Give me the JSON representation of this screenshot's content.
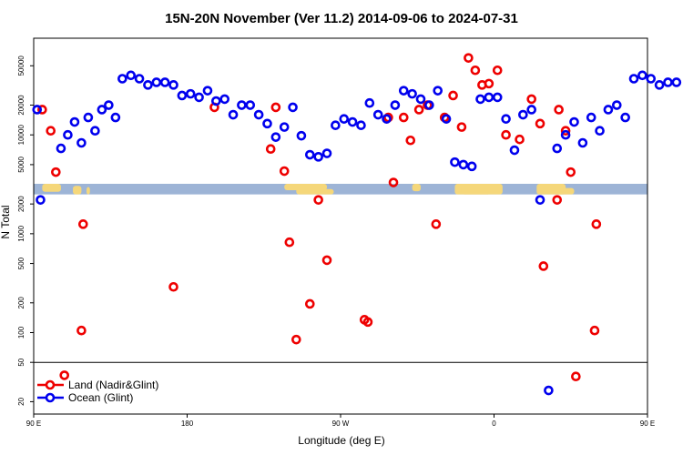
{
  "chart_data": {
    "type": "scatter",
    "title": "15N-20N November (Ver 11.2)   2014-09-06 to 2024-07-31",
    "xlabel": "Longitude (deg E)",
    "ylabel": "N Total",
    "xlim": [
      90,
      450
    ],
    "y_scale": "log",
    "ylim": [
      15,
      95000
    ],
    "x_ticks": [
      {
        "value": 90,
        "label": "90 E"
      },
      {
        "value": 180,
        "label": "180"
      },
      {
        "value": 270,
        "label": "90 W"
      },
      {
        "value": 360,
        "label": "0"
      },
      {
        "value": 450,
        "label": "90 E"
      },
      {
        "value": 540,
        "label": "180"
      }
    ],
    "y_ticks": [
      {
        "value": 20,
        "label": "20"
      },
      {
        "value": 50,
        "label": "50"
      },
      {
        "value": 100,
        "label": "100"
      },
      {
        "value": 200,
        "label": "200"
      },
      {
        "value": 500,
        "label": "500"
      },
      {
        "value": 1000,
        "label": "1000"
      },
      {
        "value": 2000,
        "label": "2000"
      },
      {
        "value": 5000,
        "label": "5000"
      },
      {
        "value": 10000,
        "label": "10000"
      },
      {
        "value": 20000,
        "label": "20000"
      },
      {
        "value": 50000,
        "label": "50000"
      }
    ],
    "separator_y": 50,
    "map_band_y": [
      2500,
      3200
    ],
    "legend_position": "bottom-left",
    "series": [
      {
        "name": "Land (Nadir&Glint)",
        "color": "#ee0000",
        "points": [
          [
            95,
            18000
          ],
          [
            100,
            11000
          ],
          [
            103,
            4200
          ],
          [
            108,
            37
          ],
          [
            118,
            105
          ],
          [
            119,
            1250
          ],
          [
            172,
            290
          ],
          [
            196,
            19000
          ],
          [
            229,
            7200
          ],
          [
            232,
            19000
          ],
          [
            237,
            4300
          ],
          [
            240,
            820
          ],
          [
            244,
            85
          ],
          [
            252,
            195
          ],
          [
            257,
            2200
          ],
          [
            262,
            540
          ],
          [
            284,
            135
          ],
          [
            286,
            128
          ],
          [
            298,
            15000
          ],
          [
            301,
            3300
          ],
          [
            307,
            15000
          ],
          [
            311,
            8800
          ],
          [
            316,
            18000
          ],
          [
            321,
            20000
          ],
          [
            326,
            1250
          ],
          [
            331,
            15000
          ],
          [
            336,
            25000
          ],
          [
            341,
            12000
          ],
          [
            345,
            60000
          ],
          [
            349,
            45000
          ],
          [
            353,
            32000
          ],
          [
            357,
            33000
          ],
          [
            362,
            45000
          ],
          [
            367,
            10000
          ],
          [
            375,
            9000
          ],
          [
            382,
            23000
          ],
          [
            387,
            13000
          ],
          [
            389,
            470
          ],
          [
            397,
            2200
          ],
          [
            398,
            18000
          ],
          [
            402,
            11000
          ],
          [
            405,
            4200
          ],
          [
            408,
            36
          ],
          [
            419,
            105
          ],
          [
            420,
            1250
          ]
        ]
      },
      {
        "name": "Ocean (Glint)",
        "color": "#0000ee",
        "points": [
          [
            92,
            18000
          ],
          [
            94,
            2200
          ],
          [
            106,
            7300
          ],
          [
            110,
            10000
          ],
          [
            114,
            13500
          ],
          [
            118,
            8300
          ],
          [
            122,
            15000
          ],
          [
            126,
            11000
          ],
          [
            130,
            18000
          ],
          [
            134,
            20000
          ],
          [
            138,
            15000
          ],
          [
            142,
            37000
          ],
          [
            147,
            40000
          ],
          [
            152,
            37000
          ],
          [
            157,
            32000
          ],
          [
            162,
            34000
          ],
          [
            167,
            34000
          ],
          [
            172,
            32000
          ],
          [
            177,
            25000
          ],
          [
            182,
            26000
          ],
          [
            187,
            24000
          ],
          [
            192,
            28000
          ],
          [
            197,
            22000
          ],
          [
            202,
            23000
          ],
          [
            207,
            16000
          ],
          [
            212,
            20000
          ],
          [
            217,
            20000
          ],
          [
            222,
            16000
          ],
          [
            227,
            13000
          ],
          [
            232,
            9500
          ],
          [
            237,
            12000
          ],
          [
            242,
            19000
          ],
          [
            247,
            9800
          ],
          [
            252,
            6300
          ],
          [
            257,
            6000
          ],
          [
            262,
            6500
          ],
          [
            267,
            12500
          ],
          [
            272,
            14500
          ],
          [
            277,
            13500
          ],
          [
            282,
            12500
          ],
          [
            287,
            21000
          ],
          [
            292,
            16000
          ],
          [
            297,
            14500
          ],
          [
            302,
            20000
          ],
          [
            307,
            28000
          ],
          [
            312,
            26000
          ],
          [
            317,
            23000
          ],
          [
            322,
            20000
          ],
          [
            327,
            28000
          ],
          [
            332,
            14500
          ],
          [
            337,
            5300
          ],
          [
            342,
            5000
          ],
          [
            347,
            4800
          ],
          [
            352,
            23000
          ],
          [
            357,
            24000
          ],
          [
            362,
            24000
          ],
          [
            367,
            14500
          ],
          [
            372,
            7000
          ],
          [
            377,
            16000
          ],
          [
            382,
            18000
          ],
          [
            387,
            2200
          ],
          [
            392,
            26
          ],
          [
            397,
            7300
          ],
          [
            402,
            10000
          ],
          [
            407,
            13500
          ],
          [
            412,
            8300
          ],
          [
            417,
            15000
          ],
          [
            422,
            11000
          ],
          [
            427,
            18000
          ],
          [
            432,
            20000
          ],
          [
            437,
            15000
          ],
          [
            442,
            37000
          ],
          [
            447,
            40000
          ],
          [
            452,
            37000
          ],
          [
            457,
            32000
          ],
          [
            462,
            34000
          ],
          [
            467,
            34000
          ]
        ]
      }
    ]
  }
}
